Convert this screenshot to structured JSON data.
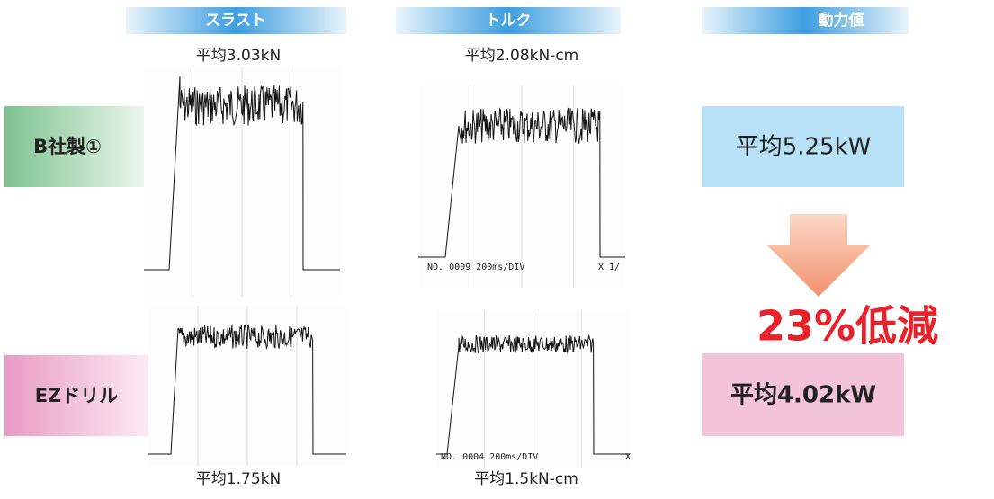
{
  "columns": {
    "thrust": "スラスト",
    "torque": "トルク",
    "power": "動力値"
  },
  "rows": [
    {
      "label": "B社製①",
      "thrust_avg": "平均3.03kN",
      "torque_avg": "平均2.08kN-cm",
      "torque_scope_label": "NO. 0009 200ms/DIV",
      "torque_scope_marker": "X 1/",
      "power_avg": "平均5.25kW"
    },
    {
      "label": "EZドリル",
      "thrust_avg": "平均1.75kN",
      "torque_avg": "平均1.5kN-cm",
      "torque_scope_label": "NO. 0004 200ms/DIV",
      "torque_scope_marker": "X",
      "power_avg": "平均4.02kW"
    }
  ],
  "reduction": "23%低減"
}
